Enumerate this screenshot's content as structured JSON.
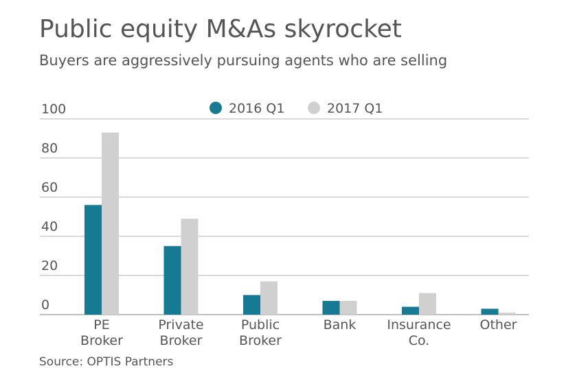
{
  "header": {
    "title": "Public equity M&As skyrocket",
    "subtitle": "Buyers are aggressively pursuing agents who are selling"
  },
  "footer": {
    "source": "Source: OPTIS Partners"
  },
  "colors": {
    "series_2016": "#157a92",
    "series_2017": "#d0d0d0",
    "grid": "#9a9a9a",
    "text": "#555555"
  },
  "chart_data": {
    "type": "bar",
    "title": "Public equity M&As skyrocket",
    "subtitle": "Buyers are aggressively pursuing agents who are selling",
    "categories": [
      [
        "PE",
        "Broker"
      ],
      [
        "Private",
        "Broker"
      ],
      [
        "Public",
        "Broker"
      ],
      [
        "Bank"
      ],
      [
        "Insurance",
        "Co."
      ],
      [
        "Other"
      ]
    ],
    "series": [
      {
        "name": "2016 Q1",
        "color": "#157a92",
        "values": [
          56,
          35,
          10,
          7,
          4,
          3
        ]
      },
      {
        "name": "2017 Q1",
        "color": "#d0d0d0",
        "values": [
          93,
          49,
          17,
          7,
          11,
          1
        ]
      }
    ],
    "yticks": [
      0,
      20,
      40,
      60,
      80,
      100
    ],
    "ylim": [
      0,
      100
    ],
    "xlabel": "",
    "ylabel": "",
    "grid": true,
    "legend": "top-center"
  }
}
